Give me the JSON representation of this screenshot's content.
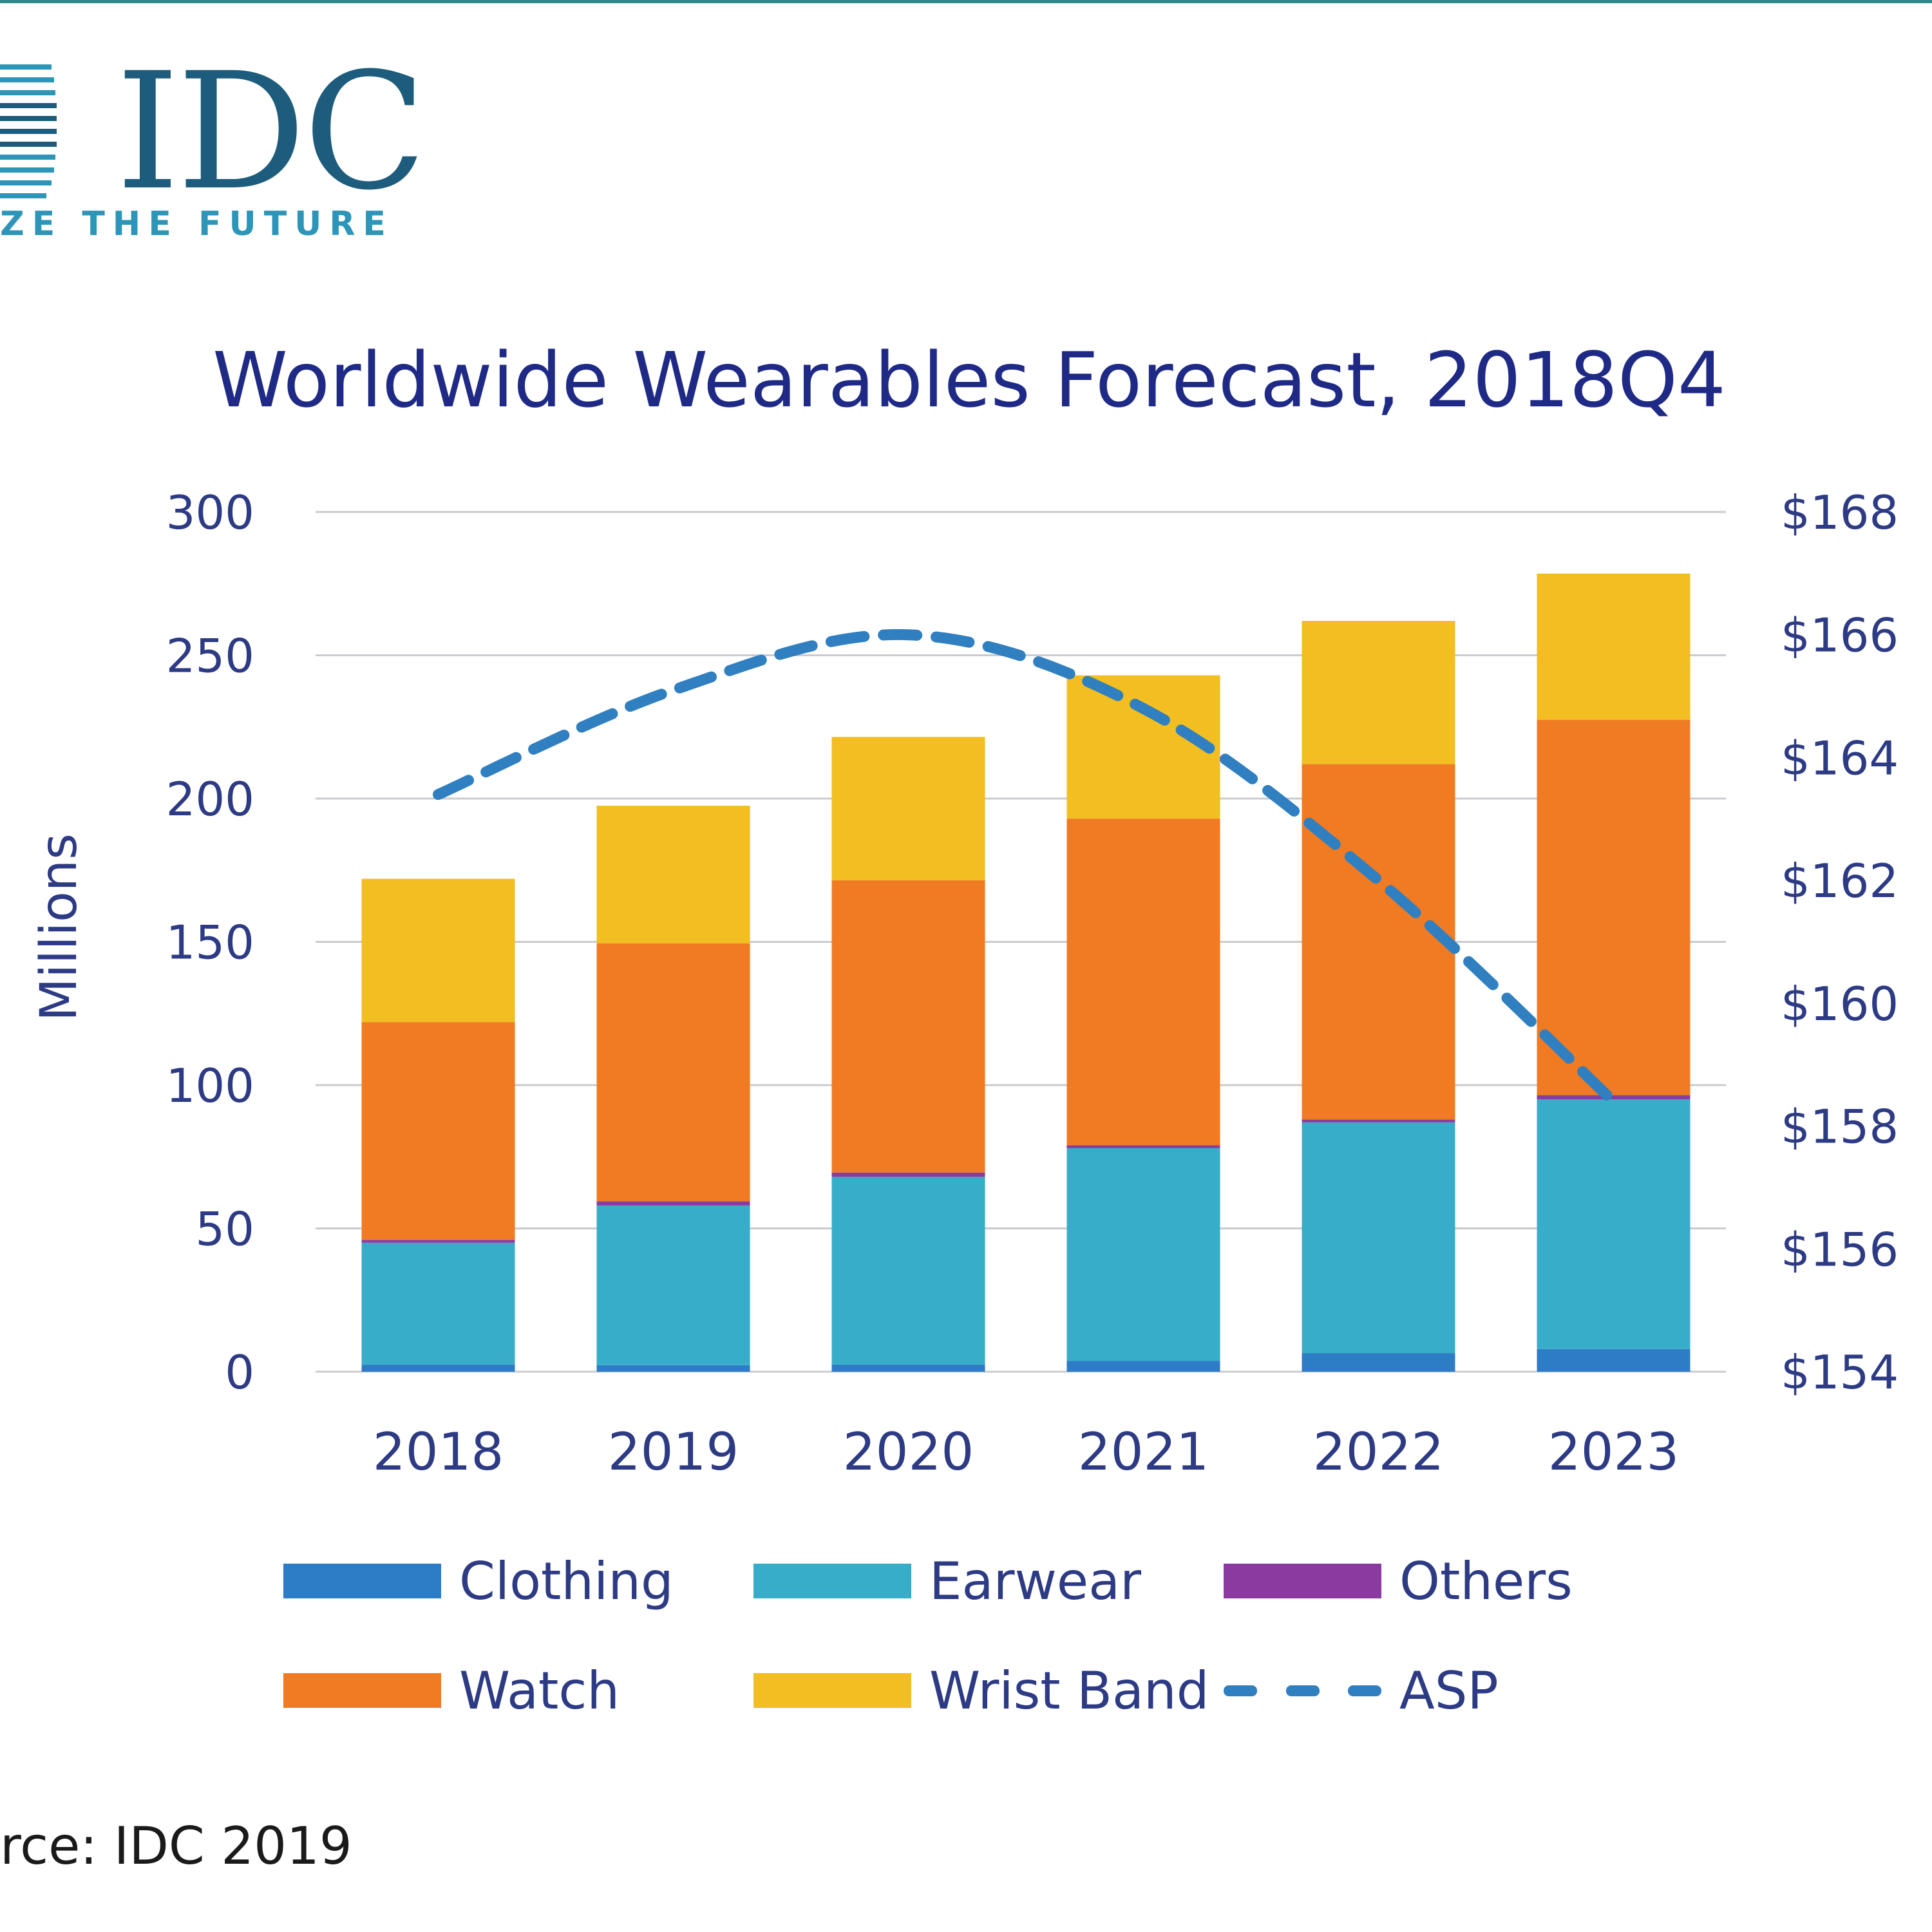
{
  "logo": {
    "wordmark": "IDC",
    "tagline": "ZE THE FUTURE"
  },
  "source": "rce: IDC 2019",
  "colors": {
    "clothing": "#2c7cc6",
    "earwear": "#37adc9",
    "others": "#8b3aa0",
    "watch": "#f07b22",
    "wrist_band": "#f2be22",
    "asp": "#2f7fc1",
    "grid": "#c9cbcf",
    "text": "#2d3a84",
    "title": "#1f2a86"
  },
  "chart_data": {
    "type": "bar",
    "stacked": true,
    "title": "Worldwide Wearables Forecast, 2018Q4",
    "xlabel": "",
    "ylabel": "Millions",
    "categories": [
      "2018",
      "2019",
      "2020",
      "2021",
      "2022",
      "2023"
    ],
    "ylim": [
      0,
      300
    ],
    "y_ticks": [
      0,
      50,
      100,
      150,
      200,
      250,
      300
    ],
    "y2lim": [
      154,
      168
    ],
    "y2_ticks": [
      "$154",
      "$156",
      "$158",
      "$160",
      "$162",
      "$164",
      "$166",
      "$168"
    ],
    "grid": true,
    "series": [
      {
        "name": "Clothing",
        "values": [
          2.5,
          2.3,
          2.5,
          3.8,
          6.5,
          7.9
        ]
      },
      {
        "name": "Earwear",
        "values": [
          42.5,
          55.7,
          65.5,
          74.2,
          80.5,
          87.1
        ]
      },
      {
        "name": "Others",
        "values": [
          1.0,
          1.5,
          1.5,
          1.0,
          1.0,
          1.5
        ]
      },
      {
        "name": "Watch",
        "values": [
          76,
          90,
          102,
          114,
          124,
          131
        ]
      },
      {
        "name": "Wrist Band",
        "values": [
          50,
          48,
          50,
          50,
          50,
          51
        ]
      }
    ],
    "line_series": {
      "name": "ASP",
      "axis": "secondary",
      "style": "dashed",
      "values": [
        163.4,
        165.1,
        166.0,
        164.8,
        162.0,
        158.4
      ]
    },
    "legend": [
      "Clothing",
      "Earwear",
      "Others",
      "Watch",
      "Wrist Band",
      "ASP"
    ],
    "legend_position": "bottom"
  }
}
